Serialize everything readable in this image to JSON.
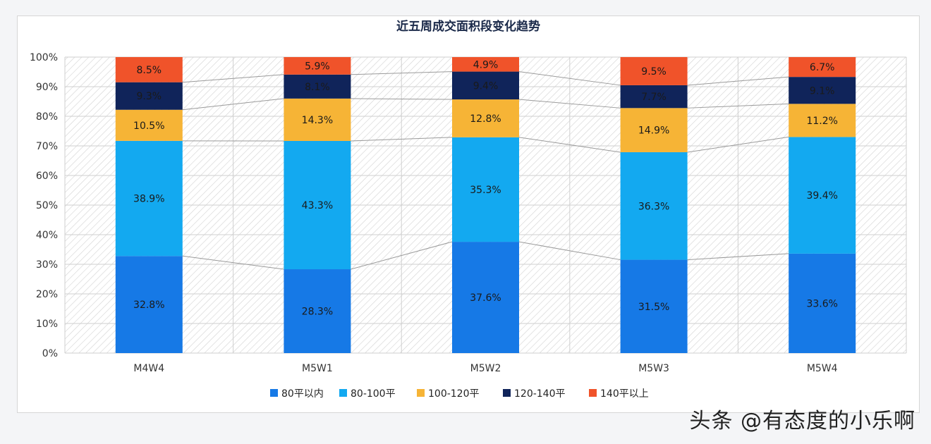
{
  "chart_data": {
    "type": "bar",
    "stacked": true,
    "percent": true,
    "title": "近五周成交面积段变化趋势",
    "categories": [
      "M4W4",
      "M5W1",
      "M5W2",
      "M5W3",
      "M5W4"
    ],
    "series": [
      {
        "name": "80平以内",
        "color": "#1679e6",
        "values": [
          32.8,
          28.3,
          37.6,
          31.5,
          33.6
        ],
        "labels": [
          "32.8%",
          "28.3%",
          "37.6%",
          "31.5%",
          "33.6%"
        ]
      },
      {
        "name": "80-100平",
        "color": "#13a9f0",
        "values": [
          38.9,
          43.3,
          35.3,
          36.3,
          39.4
        ],
        "labels": [
          "38.9%",
          "43.3%",
          "35.3%",
          "36.3%",
          "39.4%"
        ]
      },
      {
        "name": "100-120平",
        "color": "#f6b436",
        "values": [
          10.5,
          14.3,
          12.8,
          14.9,
          11.2
        ],
        "labels": [
          "10.5%",
          "14.3%",
          "12.8%",
          "14.9%",
          "11.2%"
        ]
      },
      {
        "name": "120-140平",
        "color": "#10245a",
        "values": [
          9.3,
          8.1,
          9.4,
          7.7,
          9.1
        ],
        "labels": [
          "9.3%",
          "8.1%",
          "9.4%",
          "7.7%",
          "9.1%"
        ]
      },
      {
        "name": "140平以上",
        "color": "#f0532a",
        "values": [
          8.5,
          5.9,
          4.9,
          9.5,
          6.7
        ],
        "labels": [
          "8.5%",
          "5.9%",
          "4.9%",
          "9.5%",
          "6.7%"
        ]
      }
    ],
    "yticks": [
      "0%",
      "10%",
      "20%",
      "30%",
      "40%",
      "50%",
      "60%",
      "70%",
      "80%",
      "90%",
      "100%"
    ],
    "ylim": [
      0,
      100
    ],
    "xlabel": "",
    "ylabel": "",
    "grid": true,
    "legend": "bottom"
  },
  "watermark": "头条 @有态度的小乐啊"
}
